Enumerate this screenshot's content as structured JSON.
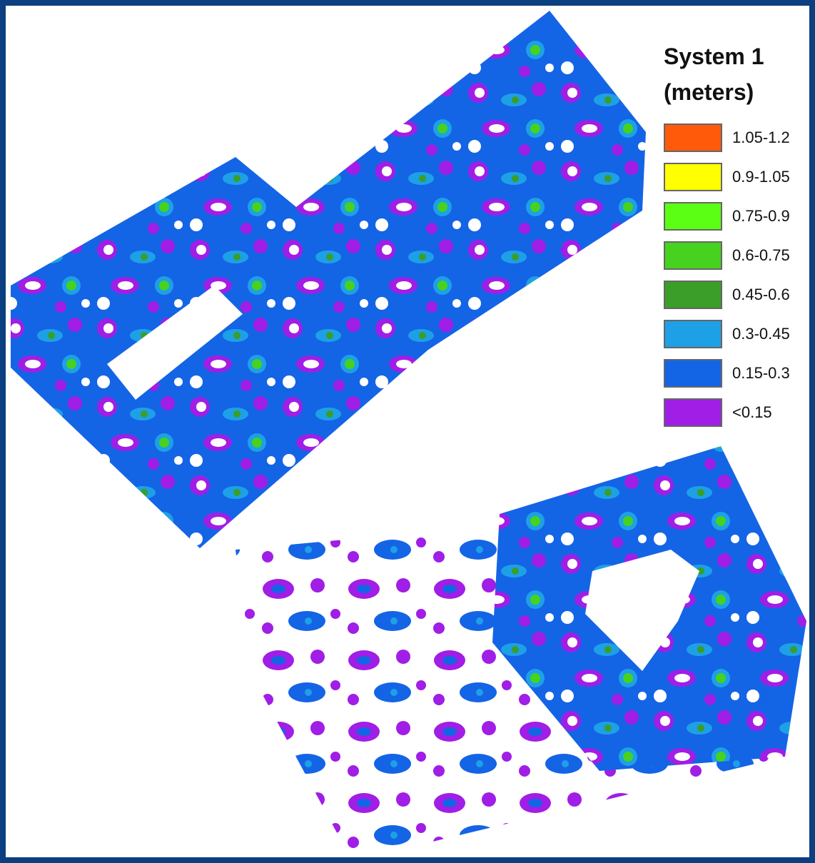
{
  "legend": {
    "title": "System 1",
    "units": "(meters)",
    "items": [
      {
        "label": "1.05-1.2",
        "color": "#ff5a0a"
      },
      {
        "label": "0.9-1.05",
        "color": "#ffff00"
      },
      {
        "label": "0.75-0.9",
        "color": "#5aff14"
      },
      {
        "label": "0.6-0.75",
        "color": "#46d21e"
      },
      {
        "label": "0.45-0.6",
        "color": "#3a9e28"
      },
      {
        "label": "0.3-0.45",
        "color": "#1ea0e6"
      },
      {
        "label": "0.15-0.3",
        "color": "#1464e6"
      },
      {
        "label": "<0.15",
        "color": "#a01ee6"
      }
    ]
  }
}
